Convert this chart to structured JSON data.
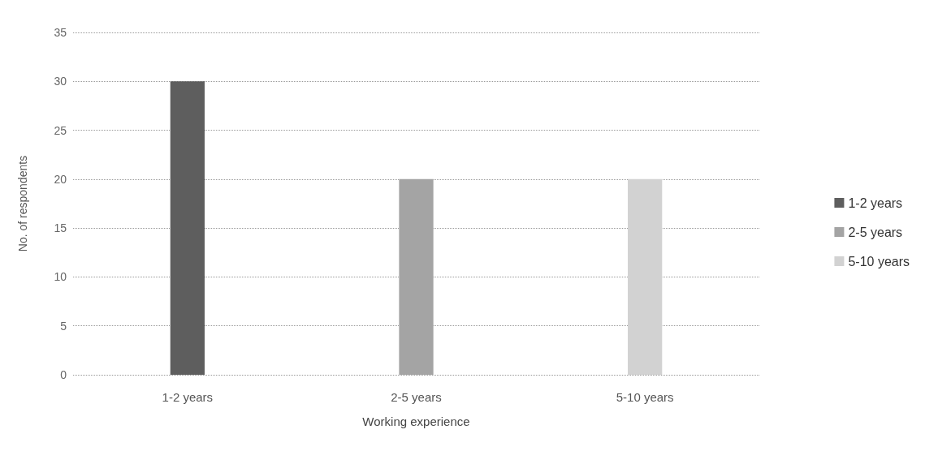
{
  "chart_data": {
    "type": "bar",
    "xlabel": "Working experience",
    "ylabel": "No. of respondents",
    "categories": [
      "1-2 years",
      "2-5 years",
      "5-10 years"
    ],
    "series": [
      {
        "name": "1-2 years",
        "color": "#5e5e5e",
        "values": [
          30,
          null,
          null
        ]
      },
      {
        "name": "2-5 years",
        "color": "#a4a4a4",
        "values": [
          null,
          20,
          null
        ]
      },
      {
        "name": "5-10 years",
        "color": "#d2d2d2",
        "values": [
          null,
          null,
          20
        ]
      }
    ],
    "stacked": true,
    "ylim": [
      0,
      35
    ],
    "yticks": [
      0,
      5,
      10,
      15,
      20,
      25,
      30,
      35
    ],
    "grid": "y",
    "legend": "right"
  }
}
